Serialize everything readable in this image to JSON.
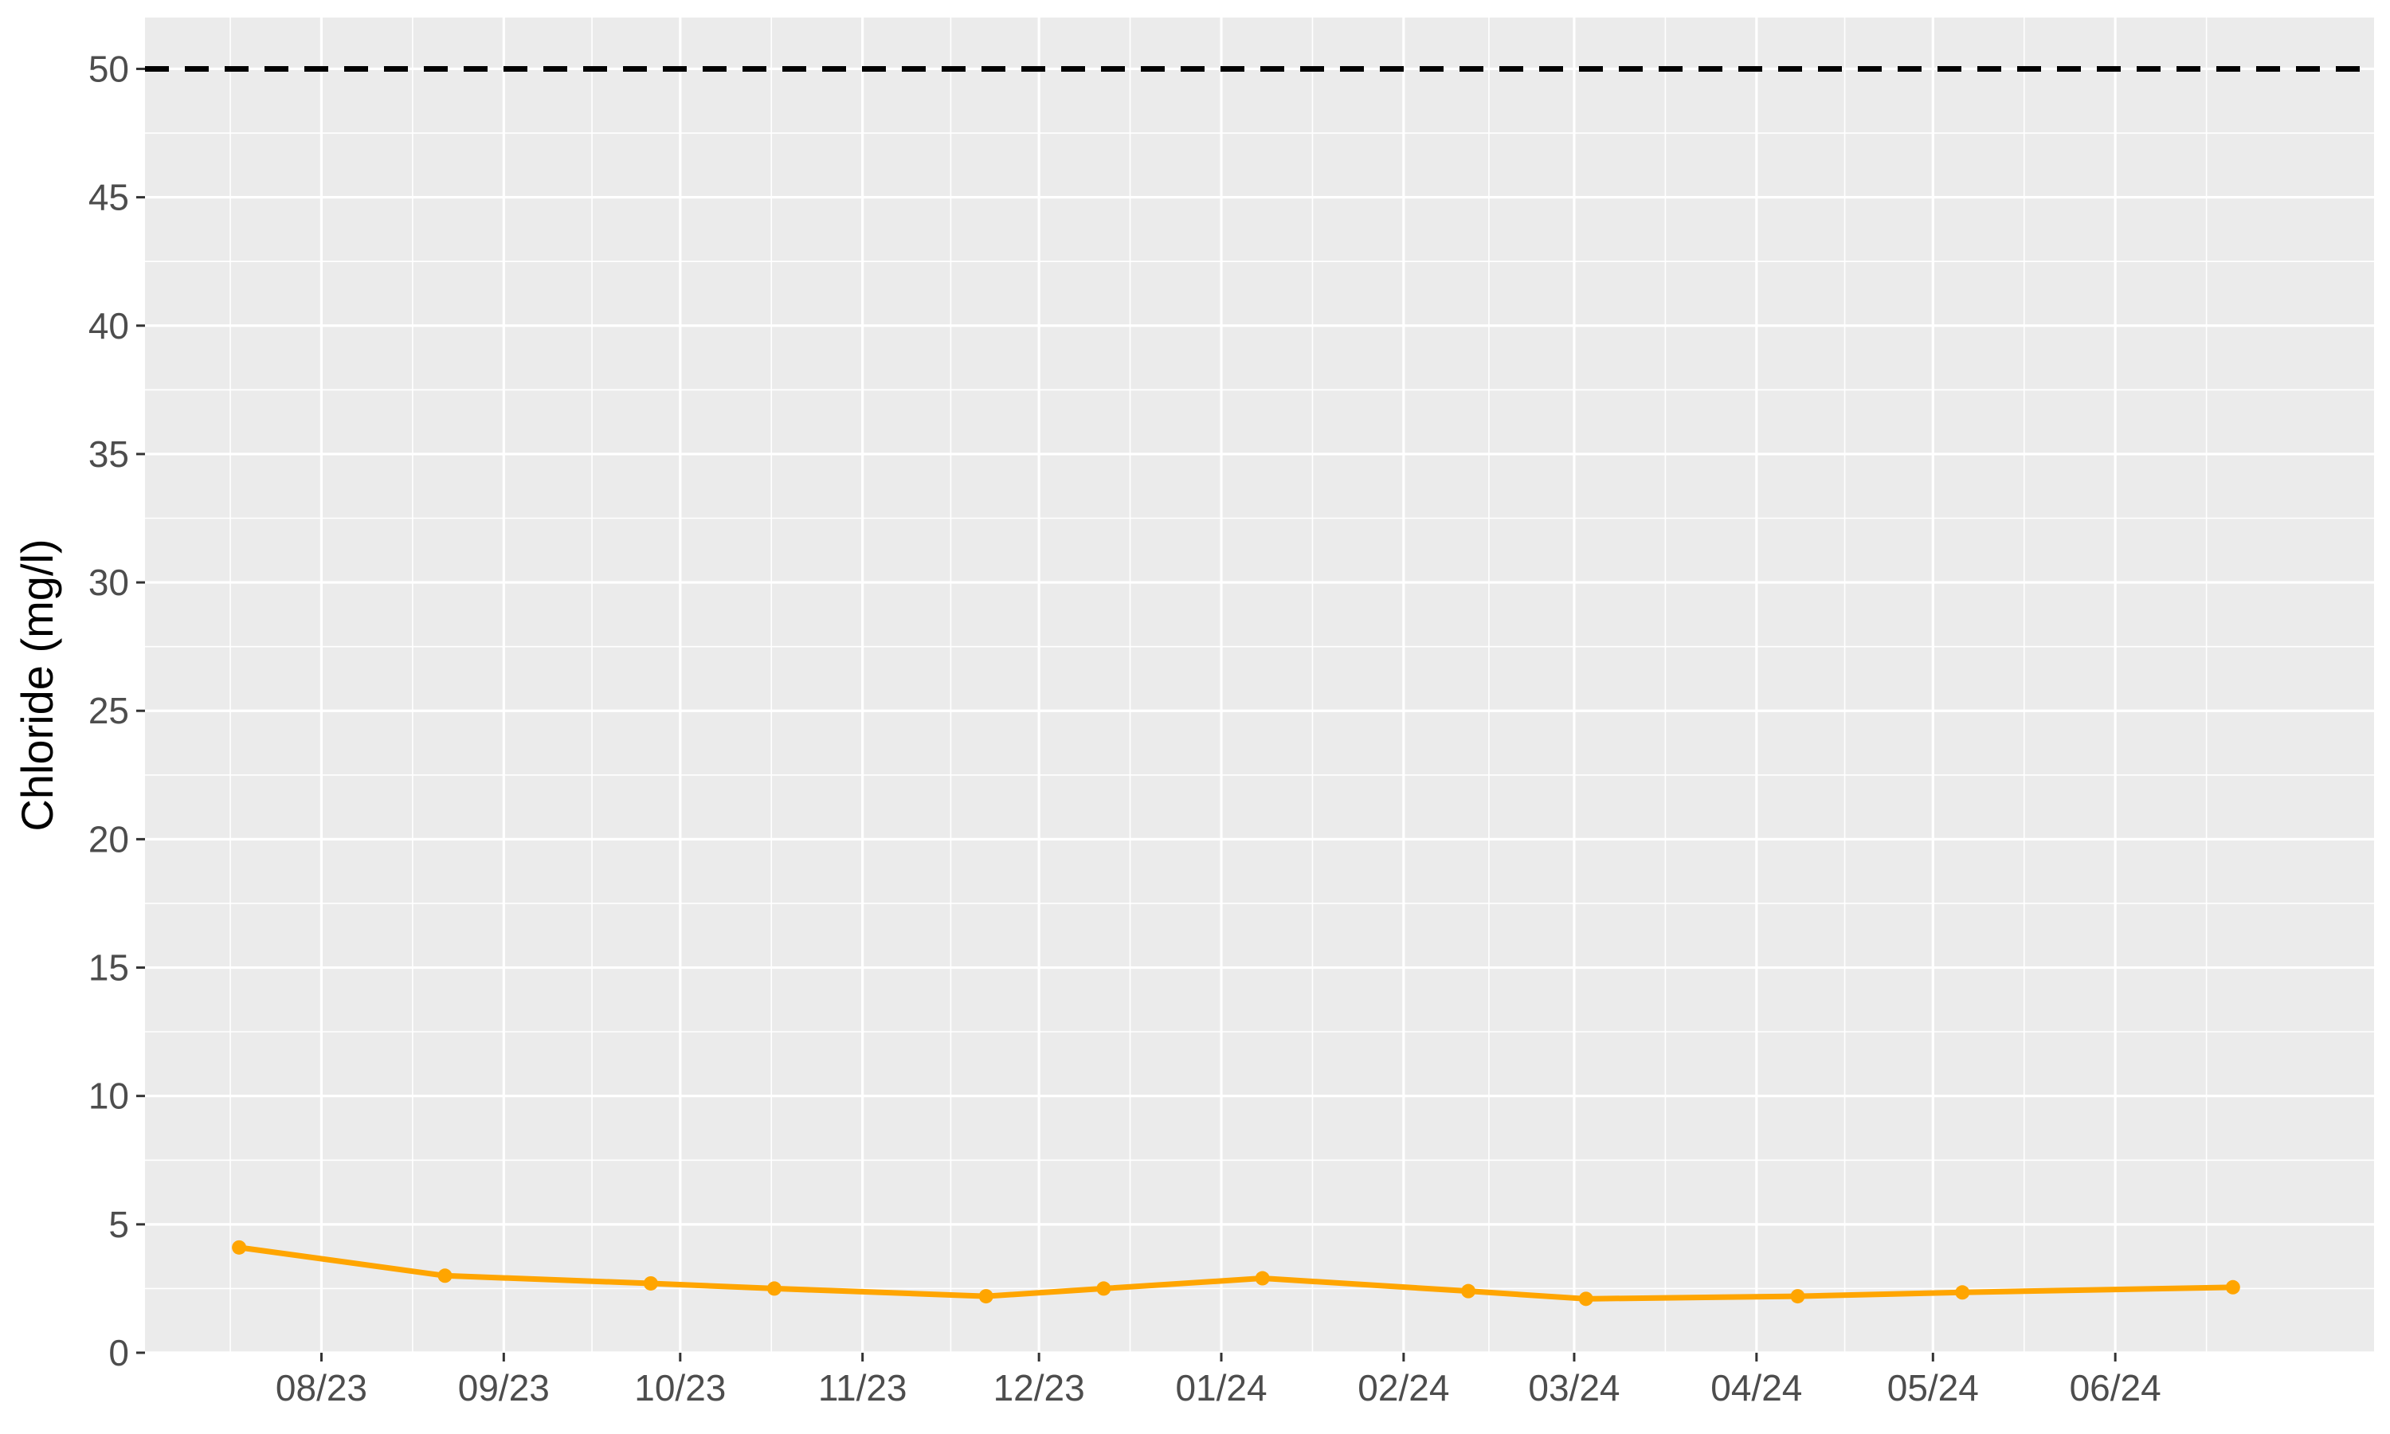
{
  "chart_data": {
    "type": "line",
    "title": "",
    "xlabel": "",
    "ylabel": "Chloride (mg/l)",
    "ylim": [
      0,
      52
    ],
    "y_ticks": [
      0,
      5,
      10,
      15,
      20,
      25,
      30,
      35,
      40,
      45,
      50
    ],
    "xlim": [
      "2023-07-02",
      "2024-07-15"
    ],
    "x_ticks": [
      {
        "date": "2023-08-01",
        "label": "08/23"
      },
      {
        "date": "2023-09-01",
        "label": "09/23"
      },
      {
        "date": "2023-10-01",
        "label": "10/23"
      },
      {
        "date": "2023-11-01",
        "label": "11/23"
      },
      {
        "date": "2023-12-01",
        "label": "12/23"
      },
      {
        "date": "2024-01-01",
        "label": "01/24"
      },
      {
        "date": "2024-02-01",
        "label": "02/24"
      },
      {
        "date": "2024-03-01",
        "label": "03/24"
      },
      {
        "date": "2024-04-01",
        "label": "04/24"
      },
      {
        "date": "2024-05-01",
        "label": "05/24"
      },
      {
        "date": "2024-06-01",
        "label": "06/24"
      }
    ],
    "grid": true,
    "series": [
      {
        "color": "#FFA500",
        "points": [
          {
            "x": "2023-07-18",
            "y": 4.1
          },
          {
            "x": "2023-08-22",
            "y": 3.0
          },
          {
            "x": "2023-09-26",
            "y": 2.7
          },
          {
            "x": "2023-10-17",
            "y": 2.5
          },
          {
            "x": "2023-11-22",
            "y": 2.2
          },
          {
            "x": "2023-12-12",
            "y": 2.5
          },
          {
            "x": "2024-01-08",
            "y": 2.9
          },
          {
            "x": "2024-02-12",
            "y": 2.4
          },
          {
            "x": "2024-03-03",
            "y": 2.1
          },
          {
            "x": "2024-04-08",
            "y": 2.2
          },
          {
            "x": "2024-05-06",
            "y": 2.35
          },
          {
            "x": "2024-06-21",
            "y": 2.55
          }
        ]
      }
    ],
    "reference_lines": [
      {
        "y": 50,
        "style": "dashed",
        "color": "#000000"
      }
    ],
    "panel_background": "#EBEBEB",
    "grid_color": "#FFFFFF"
  }
}
